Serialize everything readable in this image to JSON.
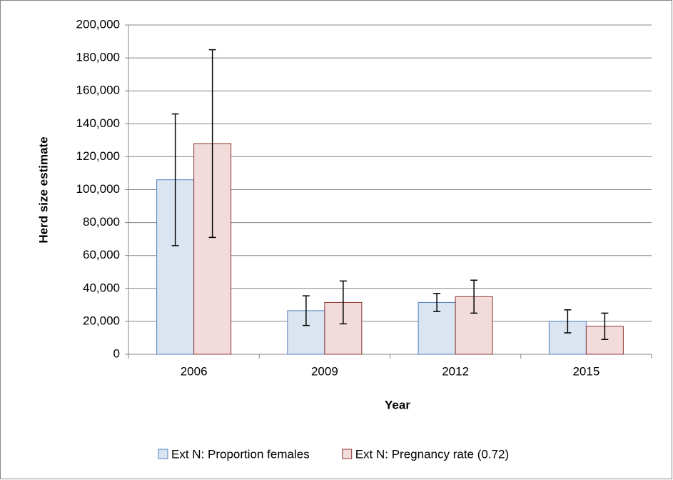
{
  "chart_data": {
    "type": "bar",
    "x_label": "Year",
    "y_label": "Herd size estimate",
    "categories": [
      "2006",
      "2009",
      "2012",
      "2015"
    ],
    "series": [
      {
        "name": "Ext N: Proportion females",
        "color": "#dbe5f1",
        "edge": "#4f81bd",
        "values": [
          106000,
          26500,
          31500,
          20000
        ],
        "errors": [
          40000,
          9000,
          5500,
          7000
        ]
      },
      {
        "name": "Ext N: Pregnancy rate (0.72)",
        "color": "#f2dcdb",
        "edge": "#8c3431",
        "values": [
          128000,
          31500,
          35000,
          17000
        ],
        "errors": [
          57000,
          13000,
          10000,
          8000
        ]
      }
    ],
    "ylim": [
      0,
      200000
    ],
    "yticks": [
      0,
      {
        "value": 20000,
        "label": "20,000"
      },
      {
        "value": 40000,
        "label": "40,000"
      },
      {
        "value": 60000,
        "label": "60,000"
      },
      {
        "value": 80000,
        "label": "80,000"
      },
      {
        "value": 100000,
        "label": "100,000"
      },
      {
        "value": 120000,
        "label": "120,000"
      },
      {
        "value": 140000,
        "label": "140,000"
      },
      {
        "value": 160000,
        "label": "160,000"
      },
      {
        "value": 180000,
        "label": "180,000"
      },
      {
        "value": 200000,
        "label": "200,000"
      }
    ],
    "grid": true,
    "legend": "bottom"
  }
}
